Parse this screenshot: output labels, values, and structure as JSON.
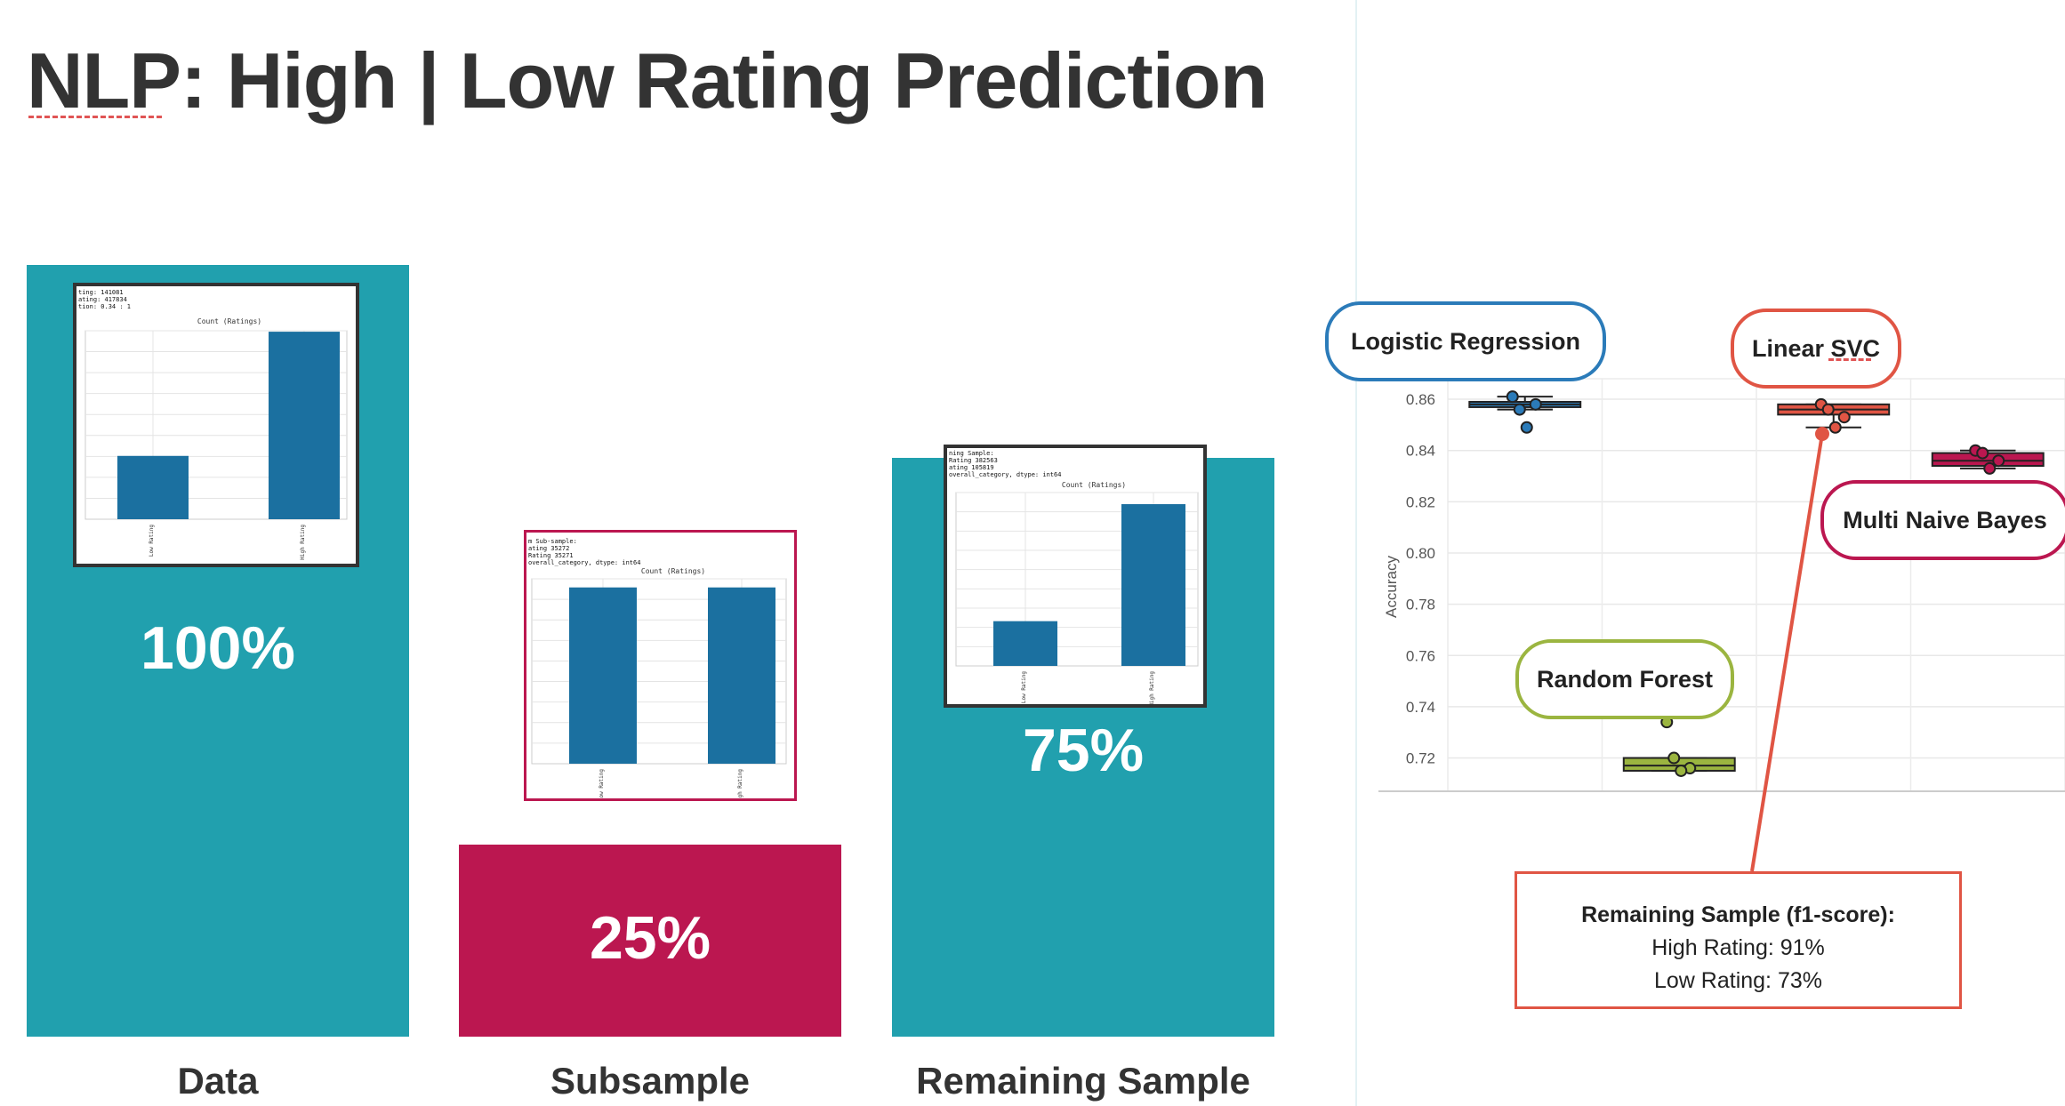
{
  "title": "NLP: High | Low Rating Prediction",
  "colors": {
    "teal": "#21a0ae",
    "crimson": "#bb1750",
    "red": "#e05544",
    "blue": "#2b7bb9",
    "green": "#9bb540",
    "bar_blue": "#1b70a0"
  },
  "bars": [
    {
      "label": "Data",
      "percent": "100%"
    },
    {
      "label": "Subsample",
      "percent": "25%"
    },
    {
      "label": "Remaining Sample",
      "percent": "75%"
    }
  ],
  "thumbnails": [
    {
      "lines": [
        "ting: 141081",
        "ating: 417834",
        "tion: 0.34 : 1"
      ],
      "title": "Count (Ratings)",
      "categories": [
        "Low Rating",
        "High Rating"
      ],
      "values": [
        141081,
        417834
      ]
    },
    {
      "lines": [
        "m Sub-sample:",
        "ating     35272",
        "Rating    35271",
        " overall_category, dtype: int64"
      ],
      "title": "Count (Ratings)",
      "categories": [
        "Low Rating",
        "High Rating"
      ],
      "values": [
        35272,
        35271
      ]
    },
    {
      "lines": [
        "ning Sample:",
        " Rating    382563",
        "ating     105819",
        " overall_category, dtype: int64"
      ],
      "title": "Count (Ratings)",
      "categories": [
        "Low Rating",
        "High Rating"
      ],
      "values": [
        105819,
        382563
      ]
    }
  ],
  "models": {
    "logistic": "Logistic Regression",
    "svc": "Linear SVC",
    "nb": "Multi Naive Bayes",
    "rf": "Random Forest"
  },
  "chart_data": {
    "type": "box",
    "ylabel": "Accuracy",
    "yticks": [
      "0.86",
      "0.84",
      "0.82",
      "0.80",
      "0.78",
      "0.76",
      "0.74",
      "0.72"
    ],
    "ylim": [
      0.707,
      0.868
    ],
    "series": [
      {
        "name": "Logistic Regression",
        "color": "#2b7bb9",
        "q1": 0.857,
        "median": 0.858,
        "q3": 0.859,
        "whisker_low": 0.856,
        "whisker_high": 0.861,
        "points": [
          0.861,
          0.856,
          0.858,
          0.849
        ]
      },
      {
        "name": "Random Forest",
        "color": "#9bb540",
        "q1": 0.715,
        "median": 0.717,
        "q3": 0.72,
        "whisker_low": 0.715,
        "whisker_high": 0.72,
        "points": [
          0.734,
          0.72,
          0.716,
          0.715
        ]
      },
      {
        "name": "Linear SVC",
        "color": "#e05544",
        "q1": 0.854,
        "median": 0.856,
        "q3": 0.858,
        "whisker_low": 0.849,
        "whisker_high": 0.858,
        "points": [
          0.858,
          0.856,
          0.853,
          0.849
        ]
      },
      {
        "name": "Multi Naive Bayes",
        "color": "#bb1750",
        "q1": 0.834,
        "median": 0.836,
        "q3": 0.839,
        "whisker_low": 0.833,
        "whisker_high": 0.84,
        "points": [
          0.84,
          0.839,
          0.836,
          0.833
        ]
      }
    ]
  },
  "callout": {
    "title": "Remaining Sample (f1-score):",
    "high": "High Rating: 91%",
    "low": "Low Rating: 73%"
  }
}
